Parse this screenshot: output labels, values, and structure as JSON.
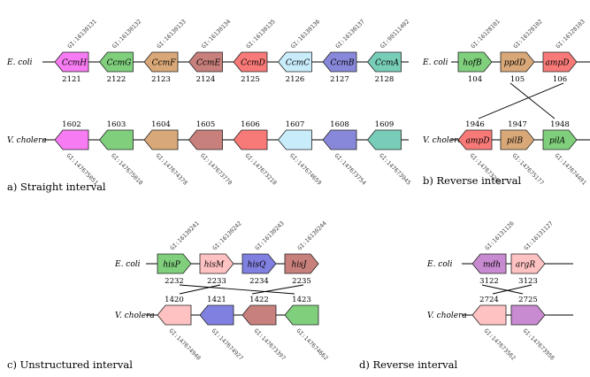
{
  "colors": {
    "CcmH": "#f77bf2",
    "CcmG": "#7fcf7c",
    "CcmF": "#d9a878",
    "CcmE": "#c8807c",
    "CcmD": "#f77a78",
    "CcmC": "#c9ecfb",
    "CcmB": "#8888da",
    "CcmA": "#78cdb8",
    "hofB": "#7fcf7c",
    "ppdD": "#d9a878",
    "ampD": "#f77a78",
    "pilB": "#d9a878",
    "pilA": "#7fcf7c",
    "hisP": "#7fcf7c",
    "hisM": "#ffc2c2",
    "hisQ": "#8080e0",
    "hisJ": "#c8807c",
    "mdh": "#c88ad0",
    "argR": "#ffc2c2"
  },
  "panels": [
    {
      "id": "a",
      "caption": "a) Straight interval",
      "top_label": "E. coli",
      "bottom_label": "V. cholera",
      "top_genes": [
        {
          "name": "CcmH",
          "num": "2121",
          "gi": "GI:16130131",
          "dir": "left",
          "color_key": "CcmH"
        },
        {
          "name": "CcmG",
          "num": "2122",
          "gi": "GI:16130132",
          "dir": "left",
          "color_key": "CcmG"
        },
        {
          "name": "CcmF",
          "num": "2123",
          "gi": "GI:16130133",
          "dir": "left",
          "color_key": "CcmF"
        },
        {
          "name": "CcmE",
          "num": "2124",
          "gi": "GI:16130134",
          "dir": "left",
          "color_key": "CcmE"
        },
        {
          "name": "CcmD",
          "num": "2125",
          "gi": "GI:16130135",
          "dir": "left",
          "color_key": "CcmD"
        },
        {
          "name": "CcmC",
          "num": "2126",
          "gi": "GI:16130136",
          "dir": "left",
          "color_key": "CcmC"
        },
        {
          "name": "CcmB",
          "num": "2127",
          "gi": "GI:16130137",
          "dir": "left",
          "color_key": "CcmB"
        },
        {
          "name": "CcmA",
          "num": "2128",
          "gi": "GI:90111402",
          "dir": "left",
          "color_key": "CcmA"
        }
      ],
      "bottom_genes": [
        {
          "name": "",
          "num": "1602",
          "gi": "GI:147675051",
          "dir": "left",
          "color_key": "CcmH"
        },
        {
          "name": "",
          "num": "1603",
          "gi": "GI:147675010",
          "dir": "left",
          "color_key": "CcmG"
        },
        {
          "name": "",
          "num": "1604",
          "gi": "GI:147674378",
          "dir": "left",
          "color_key": "CcmF"
        },
        {
          "name": "",
          "num": "1605",
          "gi": "GI:147673770",
          "dir": "left",
          "color_key": "CcmE"
        },
        {
          "name": "",
          "num": "1606",
          "gi": "GI:147673210",
          "dir": "left",
          "color_key": "CcmD"
        },
        {
          "name": "",
          "num": "1607",
          "gi": "GI:147674659",
          "dir": "left",
          "color_key": "CcmC"
        },
        {
          "name": "",
          "num": "1608",
          "gi": "GI:147673754",
          "dir": "left",
          "color_key": "CcmB"
        },
        {
          "name": "",
          "num": "1609",
          "gi": "GI:147673945",
          "dir": "left",
          "color_key": "CcmA"
        }
      ],
      "links": "straight"
    },
    {
      "id": "b",
      "caption": "b) Reverse interval",
      "top_label": "E. coli",
      "bottom_label": "V. cholera",
      "top_genes": [
        {
          "name": "hofB",
          "num": "104",
          "gi": "GI:16128101",
          "dir": "right",
          "color_key": "hofB"
        },
        {
          "name": "ppdD",
          "num": "105",
          "gi": "GI:16128102",
          "dir": "right",
          "color_key": "ppdD"
        },
        {
          "name": "ampD",
          "num": "106",
          "gi": "GI:16128103",
          "dir": "right",
          "color_key": "ampD"
        }
      ],
      "bottom_genes": [
        {
          "name": "ampD",
          "num": "1946",
          "gi": "GI:147673296",
          "dir": "left",
          "color_key": "ampD"
        },
        {
          "name": "pilB",
          "num": "1947",
          "gi": "GI:147675177",
          "dir": "right",
          "color_key": "pilB"
        },
        {
          "name": "pilA",
          "num": "1948",
          "gi": "GI:147674491",
          "dir": "right",
          "color_key": "pilA"
        }
      ],
      "links": "reverse"
    },
    {
      "id": "c",
      "caption": "c) Unstructured interval",
      "top_label": "E. coli",
      "bottom_label": "V. cholera",
      "top_genes": [
        {
          "name": "hisP",
          "num": "2232",
          "gi": "GI:16130241",
          "dir": "right",
          "color_key": "hisP"
        },
        {
          "name": "hisM",
          "num": "2233",
          "gi": "GI:16130242",
          "dir": "right",
          "color_key": "hisM"
        },
        {
          "name": "hisQ",
          "num": "2234",
          "gi": "GI:16130243",
          "dir": "right",
          "color_key": "hisQ"
        },
        {
          "name": "hisJ",
          "num": "2235",
          "gi": "GI:16130244",
          "dir": "right",
          "color_key": "hisJ"
        }
      ],
      "bottom_genes": [
        {
          "name": "",
          "num": "1420",
          "gi": "GI:147674940",
          "dir": "left",
          "color_key": "hisM"
        },
        {
          "name": "",
          "num": "1421",
          "gi": "GI:147674927",
          "dir": "left",
          "color_key": "hisQ"
        },
        {
          "name": "",
          "num": "1422",
          "gi": "GI:147673397",
          "dir": "left",
          "color_key": "hisJ"
        },
        {
          "name": "",
          "num": "1423",
          "gi": "GI:147674662",
          "dir": "left",
          "color_key": "hisP"
        }
      ],
      "links": "unstructured"
    },
    {
      "id": "d",
      "caption": "d) Reverse interval",
      "top_label": "E. coli",
      "bottom_label": "V. cholera",
      "top_genes": [
        {
          "name": "mdh",
          "num": "3122",
          "gi": "GI:16131126",
          "dir": "left",
          "color_key": "mdh"
        },
        {
          "name": "argR",
          "num": "3123",
          "gi": "GI:16131127",
          "dir": "right",
          "color_key": "argR"
        }
      ],
      "bottom_genes": [
        {
          "name": "",
          "num": "2724",
          "gi": "GI:147673562",
          "dir": "left",
          "color_key": "argR"
        },
        {
          "name": "",
          "num": "2725",
          "gi": "GI:147673956",
          "dir": "right",
          "color_key": "mdh"
        }
      ],
      "links": "reverse"
    }
  ]
}
